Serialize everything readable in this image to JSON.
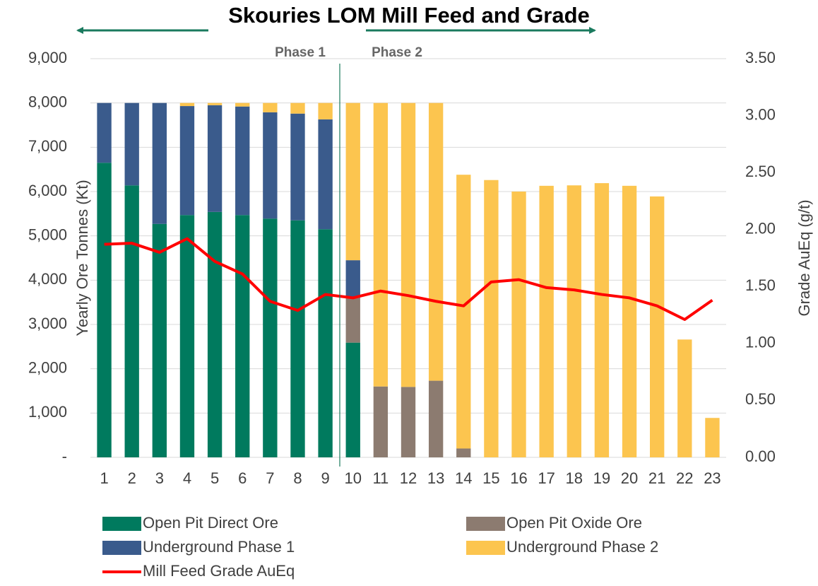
{
  "chart_data": {
    "type": "bar",
    "stacked": true,
    "title": "Skouries LOM Mill Feed and Grade",
    "y_label": "Yearly Ore Tonnes (Kt)",
    "y2_label": "Grade AuEq (g/t)",
    "annotations": [
      "Phase 1",
      "Phase 2"
    ],
    "categories": [
      "1",
      "2",
      "3",
      "4",
      "5",
      "6",
      "7",
      "8",
      "9",
      "10",
      "11",
      "12",
      "13",
      "14",
      "15",
      "16",
      "17",
      "18",
      "19",
      "20",
      "21",
      "22",
      "23"
    ],
    "series": [
      {
        "name": "Open Pit Direct Ore",
        "color": "#007a5e",
        "values": [
          6650,
          6140,
          5270,
          5470,
          5540,
          5470,
          5390,
          5350,
          5150,
          2590,
          0,
          0,
          0,
          0,
          0,
          0,
          0,
          0,
          0,
          0,
          0,
          0,
          0
        ]
      },
      {
        "name": "Open Pit Oxide Ore",
        "color": "#8c7b70",
        "values": [
          0,
          0,
          0,
          0,
          0,
          0,
          0,
          0,
          0,
          1010,
          1600,
          1590,
          1730,
          200,
          0,
          0,
          0,
          0,
          0,
          0,
          0,
          0,
          0
        ]
      },
      {
        "name": "Underground Phase 1",
        "color": "#3a5b8c",
        "values": [
          1350,
          1860,
          2730,
          2460,
          2410,
          2450,
          2400,
          2410,
          2480,
          850,
          0,
          0,
          0,
          0,
          0,
          0,
          0,
          0,
          0,
          0,
          0,
          0,
          0
        ]
      },
      {
        "name": "Underground Phase 2",
        "color": "#fcc54f",
        "values": [
          0,
          0,
          0,
          70,
          50,
          80,
          210,
          240,
          370,
          3550,
          6400,
          6410,
          6270,
          6180,
          6260,
          6000,
          6130,
          6140,
          6190,
          6130,
          5890,
          2660,
          890
        ]
      },
      {
        "name": "Mill Feed Grade AuEq",
        "color": "#ff0000",
        "type": "line",
        "axis": "y2",
        "values": [
          1.87,
          1.88,
          1.8,
          1.92,
          1.72,
          1.61,
          1.37,
          1.29,
          1.43,
          1.4,
          1.46,
          1.42,
          1.37,
          1.33,
          1.54,
          1.56,
          1.49,
          1.47,
          1.43,
          1.4,
          1.33,
          1.21,
          1.38
        ]
      }
    ],
    "ylim": [
      0,
      9000
    ],
    "yticks": [
      {
        "value": 0,
        "label": "-"
      },
      {
        "value": 1000,
        "label": "1,000"
      },
      {
        "value": 2000,
        "label": "2,000"
      },
      {
        "value": 3000,
        "label": "3,000"
      },
      {
        "value": 4000,
        "label": "4,000"
      },
      {
        "value": 5000,
        "label": "5,000"
      },
      {
        "value": 6000,
        "label": "6,000"
      },
      {
        "value": 7000,
        "label": "7,000"
      },
      {
        "value": 8000,
        "label": "8,000"
      },
      {
        "value": 9000,
        "label": "9,000"
      }
    ],
    "y2lim": [
      0,
      3.5
    ],
    "y2ticks": [
      {
        "value": 0,
        "label": "0.00"
      },
      {
        "value": 0.5,
        "label": "0.50"
      },
      {
        "value": 1,
        "label": "1.00"
      },
      {
        "value": 1.5,
        "label": "1.50"
      },
      {
        "value": 2,
        "label": "2.00"
      },
      {
        "value": 2.5,
        "label": "2.50"
      },
      {
        "value": 3,
        "label": "3.00"
      },
      {
        "value": 3.5,
        "label": "3.50"
      }
    ],
    "grid": true,
    "legend": "bottom"
  }
}
